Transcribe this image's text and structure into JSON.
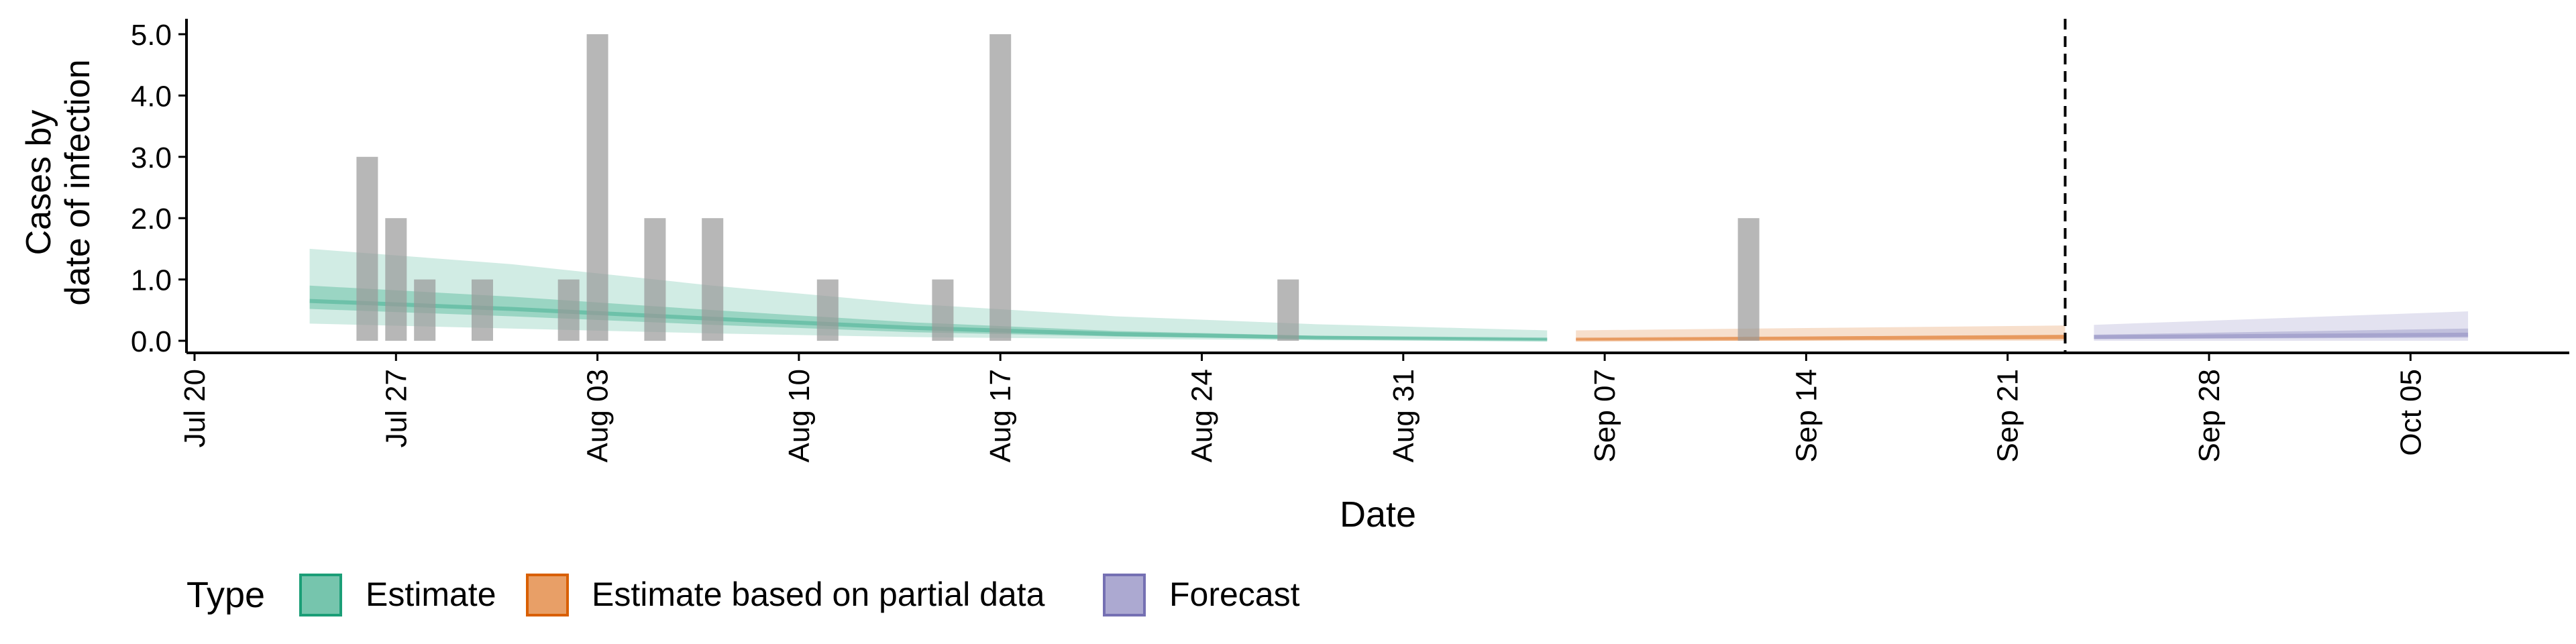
{
  "chart_data": {
    "type": "bar",
    "title": "",
    "xlabel": "Date",
    "ylabel_lines": [
      "Cases by",
      "date of infection"
    ],
    "ylim": [
      0,
      5.2
    ],
    "y_ticks": [
      {
        "value": 0,
        "label": "0.0"
      },
      {
        "value": 1,
        "label": "1.0"
      },
      {
        "value": 2,
        "label": "2.0"
      },
      {
        "value": 3,
        "label": "3.0"
      },
      {
        "value": 4,
        "label": "4.0"
      },
      {
        "value": 5,
        "label": "5.0"
      }
    ],
    "x_range": [
      "2020-07-19",
      "2020-10-12"
    ],
    "x_ticks": [
      {
        "date": "2020-07-20",
        "label": "Jul 20"
      },
      {
        "date": "2020-07-27",
        "label": "Jul 27"
      },
      {
        "date": "2020-08-03",
        "label": "Aug 03"
      },
      {
        "date": "2020-08-10",
        "label": "Aug 10"
      },
      {
        "date": "2020-08-17",
        "label": "Aug 17"
      },
      {
        "date": "2020-08-24",
        "label": "Aug 24"
      },
      {
        "date": "2020-08-31",
        "label": "Aug 31"
      },
      {
        "date": "2020-09-07",
        "label": "Sep 07"
      },
      {
        "date": "2020-09-14",
        "label": "Sep 14"
      },
      {
        "date": "2020-09-21",
        "label": "Sep 21"
      },
      {
        "date": "2020-09-28",
        "label": "Sep 28"
      },
      {
        "date": "2020-10-05",
        "label": "Oct 05"
      }
    ],
    "reported_cases": [
      {
        "date": "2020-07-26",
        "value": 3
      },
      {
        "date": "2020-07-27",
        "value": 2
      },
      {
        "date": "2020-07-28",
        "value": 1
      },
      {
        "date": "2020-07-30",
        "value": 1
      },
      {
        "date": "2020-08-02",
        "value": 1
      },
      {
        "date": "2020-08-03",
        "value": 5
      },
      {
        "date": "2020-08-05",
        "value": 2
      },
      {
        "date": "2020-08-07",
        "value": 2
      },
      {
        "date": "2020-08-11",
        "value": 1
      },
      {
        "date": "2020-08-15",
        "value": 1
      },
      {
        "date": "2020-08-17",
        "value": 5
      },
      {
        "date": "2020-08-27",
        "value": 1
      },
      {
        "date": "2020-09-12",
        "value": 2
      }
    ],
    "series": [
      {
        "name": "Estimate",
        "color": "#1b9e77",
        "points": [
          {
            "date": "2020-07-24",
            "lower90": 0.28,
            "lower50": 0.52,
            "median": 0.65,
            "upper50": 0.9,
            "upper90": 1.5
          },
          {
            "date": "2020-07-31",
            "lower90": 0.2,
            "lower50": 0.4,
            "median": 0.52,
            "upper50": 0.72,
            "upper90": 1.25
          },
          {
            "date": "2020-08-07",
            "lower90": 0.12,
            "lower50": 0.26,
            "median": 0.36,
            "upper50": 0.5,
            "upper90": 0.9
          },
          {
            "date": "2020-08-14",
            "lower90": 0.06,
            "lower50": 0.14,
            "median": 0.21,
            "upper50": 0.3,
            "upper90": 0.6
          },
          {
            "date": "2020-08-21",
            "lower90": 0.03,
            "lower50": 0.07,
            "median": 0.11,
            "upper50": 0.16,
            "upper90": 0.4
          },
          {
            "date": "2020-08-28",
            "lower90": 0.01,
            "lower50": 0.03,
            "median": 0.05,
            "upper50": 0.08,
            "upper90": 0.27
          },
          {
            "date": "2020-09-05",
            "lower90": 0.0,
            "lower50": 0.01,
            "median": 0.02,
            "upper50": 0.04,
            "upper90": 0.17
          }
        ]
      },
      {
        "name": "Estimate based on partial data",
        "color": "#d95f02",
        "points": [
          {
            "date": "2020-09-06",
            "lower90": 0.0,
            "lower50": 0.01,
            "median": 0.02,
            "upper50": 0.04,
            "upper90": 0.17
          },
          {
            "date": "2020-09-23",
            "lower90": 0.0,
            "lower50": 0.03,
            "median": 0.06,
            "upper50": 0.1,
            "upper90": 0.25
          }
        ]
      },
      {
        "name": "Forecast",
        "color": "#7570b3",
        "points": [
          {
            "date": "2020-09-24",
            "lower90": 0.0,
            "lower50": 0.03,
            "median": 0.06,
            "upper50": 0.1,
            "upper90": 0.26
          },
          {
            "date": "2020-10-07",
            "lower90": 0.0,
            "lower50": 0.05,
            "median": 0.1,
            "upper50": 0.2,
            "upper90": 0.48
          }
        ]
      }
    ],
    "vline_date": "2020-09-23",
    "grid": false,
    "legend": {
      "title": "Type",
      "position": "bottom",
      "entries": [
        "Estimate",
        "Estimate based on partial data",
        "Forecast"
      ]
    }
  }
}
